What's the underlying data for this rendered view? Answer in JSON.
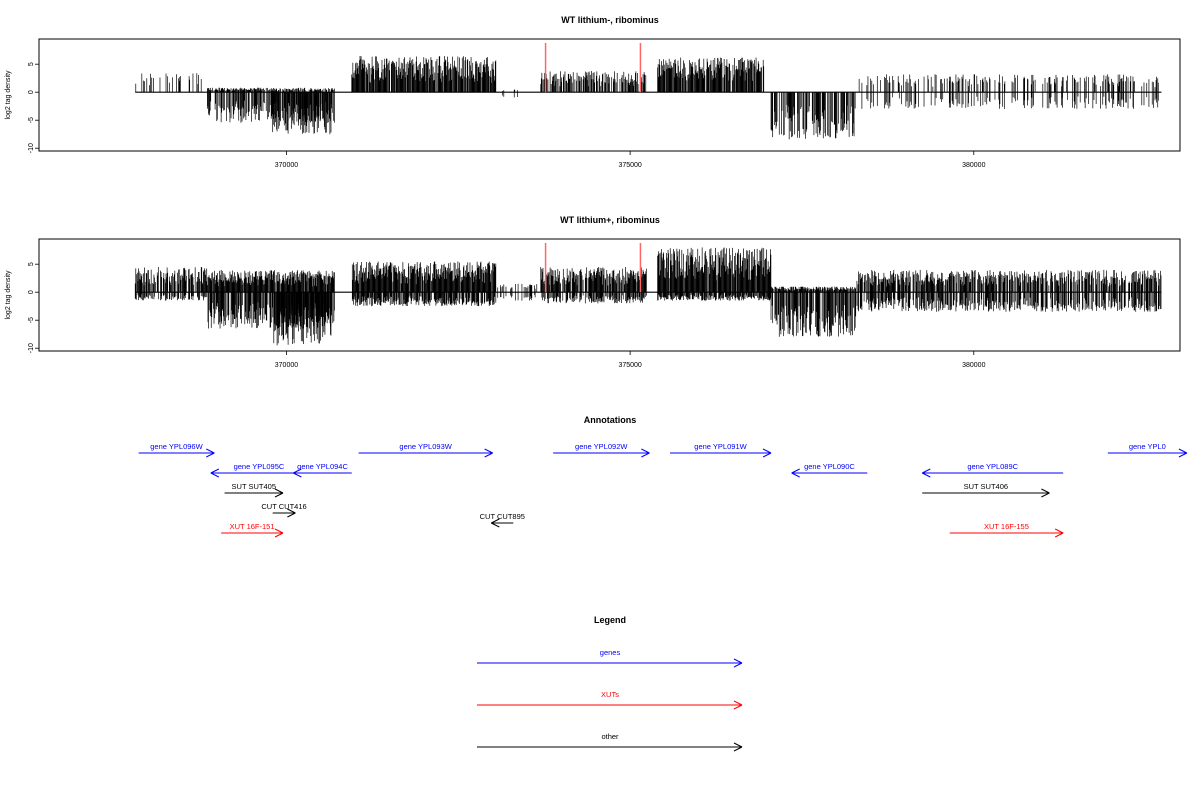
{
  "colors": {
    "gene": "#0000ff",
    "xut": "#ff0000",
    "other": "#000000",
    "marker": "#ff6666",
    "bar": "#000000"
  },
  "chart_data": [
    {
      "type": "bar",
      "title": "WT lithium-, ribominus",
      "ylabel": "log2 tag density",
      "xlim": [
        366400,
        383000
      ],
      "ylim": [
        -10.5,
        9.5
      ],
      "x_ticks": [
        370000,
        375000,
        380000
      ],
      "x_tick_labels": [
        "370000",
        "375000",
        "380000"
      ],
      "y_ticks": [
        -10,
        -5,
        0,
        5
      ],
      "y_tick_labels": [
        "-10",
        "-5",
        "0",
        "5"
      ],
      "x_range": [
        367800,
        382730
      ],
      "markers": [
        373770,
        375150
      ],
      "segments": [
        {
          "from": 367800,
          "to": 368850,
          "plus": 3.5,
          "minus": 0,
          "density": 0.22
        },
        {
          "from": 368850,
          "to": 370700,
          "plus": 0.8,
          "minus": -5.5,
          "density": 0.75
        },
        {
          "from": 369800,
          "to": 370650,
          "plus": 0,
          "minus": -7.5,
          "density": 0.85
        },
        {
          "from": 370950,
          "to": 373050,
          "plus": 6.5,
          "minus": 0,
          "density": 0.9
        },
        {
          "from": 373050,
          "to": 373650,
          "plus": 0.5,
          "minus": -1.2,
          "density": 0.1
        },
        {
          "from": 373700,
          "to": 375250,
          "plus": 3.8,
          "minus": 0,
          "density": 0.6
        },
        {
          "from": 375400,
          "to": 376950,
          "plus": 6.2,
          "minus": 0,
          "density": 0.9
        },
        {
          "from": 377050,
          "to": 378300,
          "plus": 0,
          "minus": -8.5,
          "density": 0.8
        },
        {
          "from": 378300,
          "to": 382730,
          "plus": 3.2,
          "minus": -3.0,
          "density": 0.3
        }
      ]
    },
    {
      "type": "bar",
      "title": "WT lithium+, ribominus",
      "ylabel": "log2 tag density",
      "xlim": [
        366400,
        383000
      ],
      "ylim": [
        -10.5,
        9.5
      ],
      "x_ticks": [
        370000,
        375000,
        380000
      ],
      "x_tick_labels": [
        "370000",
        "375000",
        "380000"
      ],
      "y_ticks": [
        -10,
        -5,
        0,
        5
      ],
      "y_tick_labels": [
        "-10",
        "-5",
        "0",
        "5"
      ],
      "x_range": [
        367800,
        382730
      ],
      "markers": [
        373770,
        375150
      ],
      "segments": [
        {
          "from": 367800,
          "to": 368850,
          "plus": 4.5,
          "minus": -1.5,
          "density": 0.8
        },
        {
          "from": 368850,
          "to": 370700,
          "plus": 4.0,
          "minus": -6.5,
          "density": 0.95
        },
        {
          "from": 369800,
          "to": 370650,
          "plus": 0,
          "minus": -9.5,
          "density": 0.9
        },
        {
          "from": 370950,
          "to": 373050,
          "plus": 5.5,
          "minus": -2.5,
          "density": 0.95
        },
        {
          "from": 373050,
          "to": 373650,
          "plus": 1.5,
          "minus": -1.5,
          "density": 0.3
        },
        {
          "from": 373700,
          "to": 375250,
          "plus": 4.5,
          "minus": -2.0,
          "density": 0.9
        },
        {
          "from": 375400,
          "to": 377050,
          "plus": 8.0,
          "minus": -1.5,
          "density": 0.95
        },
        {
          "from": 377050,
          "to": 378300,
          "plus": 1.0,
          "minus": -8.0,
          "density": 0.85
        },
        {
          "from": 378300,
          "to": 382730,
          "plus": 4.0,
          "minus": -3.5,
          "density": 0.75
        }
      ]
    }
  ],
  "annotations": {
    "title": "Annotations",
    "items": [
      {
        "label": "gene YPL096W",
        "type": "gene",
        "from": 367850,
        "to": 368950,
        "row": 0
      },
      {
        "label": "gene YPL095C",
        "type": "gene",
        "from": 368900,
        "to": 370300,
        "row": 1
      },
      {
        "label": "gene YPL094C",
        "type": "gene",
        "from": 370100,
        "to": 370950,
        "row": 1
      },
      {
        "label": "gene YPL093W",
        "type": "gene",
        "from": 371050,
        "to": 373000,
        "row": 0
      },
      {
        "label": "gene YPL092W",
        "type": "gene",
        "from": 373880,
        "to": 375280,
        "row": 0
      },
      {
        "label": "gene YPL091W",
        "type": "gene",
        "from": 375580,
        "to": 377050,
        "row": 0
      },
      {
        "label": "gene YPL090C",
        "type": "gene",
        "from": 377350,
        "to": 378450,
        "row": 1
      },
      {
        "label": "gene YPL089C",
        "type": "gene",
        "from": 379250,
        "to": 381300,
        "row": 1
      },
      {
        "label": "gene YPL0",
        "type": "gene",
        "from": 381950,
        "to": 383100,
        "row": 0
      },
      {
        "label": "SUT SUT405",
        "type": "other",
        "from": 369100,
        "to": 369950,
        "row": 2
      },
      {
        "label": "CUT CUT416",
        "type": "other",
        "from": 369800,
        "to": 370130,
        "row": 3
      },
      {
        "label": "XUT 16F-151",
        "type": "xut",
        "from": 369050,
        "to": 369950,
        "row": 4
      },
      {
        "label": "CUT CUT895",
        "type": "other",
        "from": 372980,
        "to": 373300,
        "row": 3.5
      },
      {
        "label": "SUT SUT406",
        "type": "other",
        "from": 379250,
        "to": 381100,
        "row": 2
      },
      {
        "label": "XUT 16F-155",
        "type": "xut",
        "from": 379650,
        "to": 381300,
        "row": 4
      }
    ]
  },
  "legend": {
    "title": "Legend",
    "items": [
      {
        "label": "genes",
        "type": "gene"
      },
      {
        "label": "XUTs",
        "type": "xut"
      },
      {
        "label": "other",
        "type": "other"
      }
    ]
  }
}
